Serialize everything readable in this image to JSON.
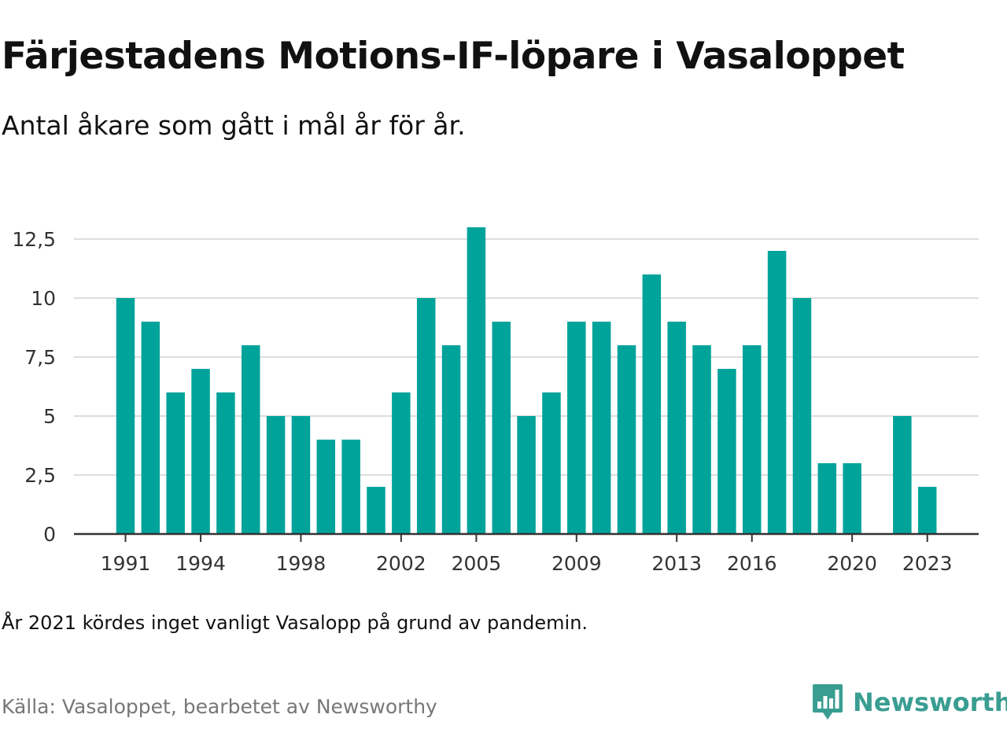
{
  "header": {
    "title": "Färjestadens Motions-IF-löpare i Vasaloppet",
    "subtitle": "Antal åkare som gått i mål år för år."
  },
  "footer": {
    "note": "År 2021 kördes inget vanligt Vasalopp på grund av pandemin.",
    "source": "Källa: Vasaloppet, bearbetet av Newsworthy",
    "brand": "Newsworthy",
    "brand_icon": "bar-chart-speech-bubble-icon"
  },
  "colors": {
    "bar": "#00a39a",
    "grid": "#dddddd",
    "axis": "#333333",
    "brand": "#3a9d92"
  },
  "chart_data": {
    "type": "bar",
    "categories": [
      1991,
      1992,
      1993,
      1994,
      1995,
      1996,
      1997,
      1998,
      1999,
      2000,
      2001,
      2002,
      2003,
      2004,
      2005,
      2006,
      2007,
      2008,
      2009,
      2010,
      2011,
      2012,
      2013,
      2014,
      2015,
      2016,
      2017,
      2018,
      2019,
      2020,
      2021,
      2022,
      2023
    ],
    "values": [
      10,
      9,
      6,
      7,
      6,
      8,
      5,
      5,
      4,
      4,
      2,
      6,
      10,
      8,
      13,
      9,
      5,
      6,
      9,
      9,
      8,
      11,
      9,
      8,
      7,
      8,
      12,
      10,
      3,
      3,
      null,
      5,
      2
    ],
    "x_tick_labels": [
      "1991",
      "1994",
      "1998",
      "2002",
      "2005",
      "2009",
      "2013",
      "2016",
      "2020",
      "2023"
    ],
    "y_ticks": [
      0,
      2.5,
      5,
      7.5,
      10,
      12.5
    ],
    "y_tick_labels": [
      "0",
      "2,5",
      "5",
      "7,5",
      "10",
      "12,5"
    ],
    "ylim": [
      0,
      13.5
    ],
    "grid": true,
    "xlabel": "",
    "ylabel": ""
  }
}
